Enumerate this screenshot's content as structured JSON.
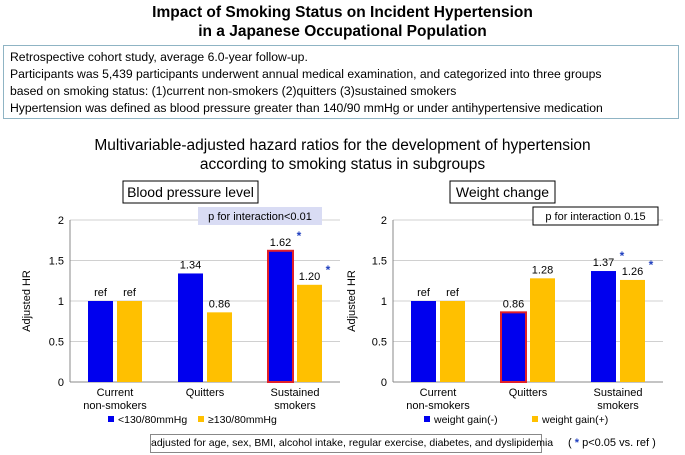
{
  "title_line1": "Impact of Smoking Status on Incident Hypertension",
  "title_line2": "in a Japanese Occupational Population",
  "study_box": {
    "line1": "Retrospective cohort study, average 6.0-year follow-up.",
    "line2": "Participants was 5,439 participants underwent annual medical examination, and categorized into three groups",
    "line3": "based on smoking status:  (1)current non-smokers (2)quitters (3)sustained smokers",
    "line4": "Hypertension was defined as blood pressure greater than 140/90 mmHg or under antihypertensive medication"
  },
  "subtitle_line1": "Multivariable-adjusted hazard ratios for the development of hypertension",
  "subtitle_line2": "according to smoking status in subgroups",
  "footnote": "adjusted for age, sex, BMI, alcohol intake, regular exercise, diabetes, and dyslipidemia",
  "significance_note": {
    "star": "*",
    "text": " p<0.05 vs. ref )",
    "open": "( "
  },
  "colors": {
    "blue": "#0000ee",
    "yellow": "#ffc000",
    "red_outline": "#e0202a",
    "star": "#1f3fbf",
    "interaction_box": "#d9dcf4"
  },
  "chart_data": [
    {
      "type": "bar",
      "panel_title": "Blood pressure level",
      "interaction_label": "p for interaction<0.01",
      "interaction_box_style": "shaded",
      "ylabel": "Adjusted HR",
      "ylim": [
        0,
        2
      ],
      "yticks": [
        "0",
        "0.5",
        "1",
        "1.5",
        "2"
      ],
      "categories": [
        [
          "Current",
          "non-smokers"
        ],
        [
          "Quitters"
        ],
        [
          "Sustained",
          "smokers"
        ]
      ],
      "series": [
        {
          "name": "<130/80mmHg",
          "color": "#0000ee",
          "values": [
            1,
            1.34,
            1.62
          ],
          "labels": [
            "ref",
            "1.34",
            "1.62"
          ],
          "significant": [
            false,
            false,
            true
          ],
          "highlight": [
            false,
            false,
            true
          ]
        },
        {
          "name": "≥130/80mmHg",
          "color": "#ffc000",
          "values": [
            1,
            0.86,
            1.2
          ],
          "labels": [
            "ref",
            "0.86",
            "1.20"
          ],
          "significant": [
            false,
            false,
            true
          ],
          "highlight": [
            false,
            false,
            false
          ]
        }
      ]
    },
    {
      "type": "bar",
      "panel_title": "Weight change",
      "interaction_label": "p for interaction 0.15",
      "interaction_box_style": "outline",
      "ylabel": "Adjusted HR",
      "ylim": [
        0,
        2
      ],
      "yticks": [
        "0",
        "0.5",
        "1",
        "1.5",
        "2"
      ],
      "categories": [
        [
          "Current",
          "non-smokers"
        ],
        [
          "Quitters"
        ],
        [
          "Sustained",
          "smokers"
        ]
      ],
      "series": [
        {
          "name": "weight gain(-)",
          "color": "#0000ee",
          "values": [
            1,
            0.86,
            1.37
          ],
          "labels": [
            "ref",
            "0.86",
            "1.37"
          ],
          "significant": [
            false,
            false,
            true
          ],
          "highlight": [
            false,
            true,
            false
          ]
        },
        {
          "name": "weight gain(+)",
          "color": "#ffc000",
          "values": [
            1,
            1.28,
            1.26
          ],
          "labels": [
            "ref",
            "1.28",
            "1.26"
          ],
          "significant": [
            false,
            false,
            true
          ],
          "highlight": [
            false,
            false,
            false
          ]
        }
      ]
    }
  ]
}
